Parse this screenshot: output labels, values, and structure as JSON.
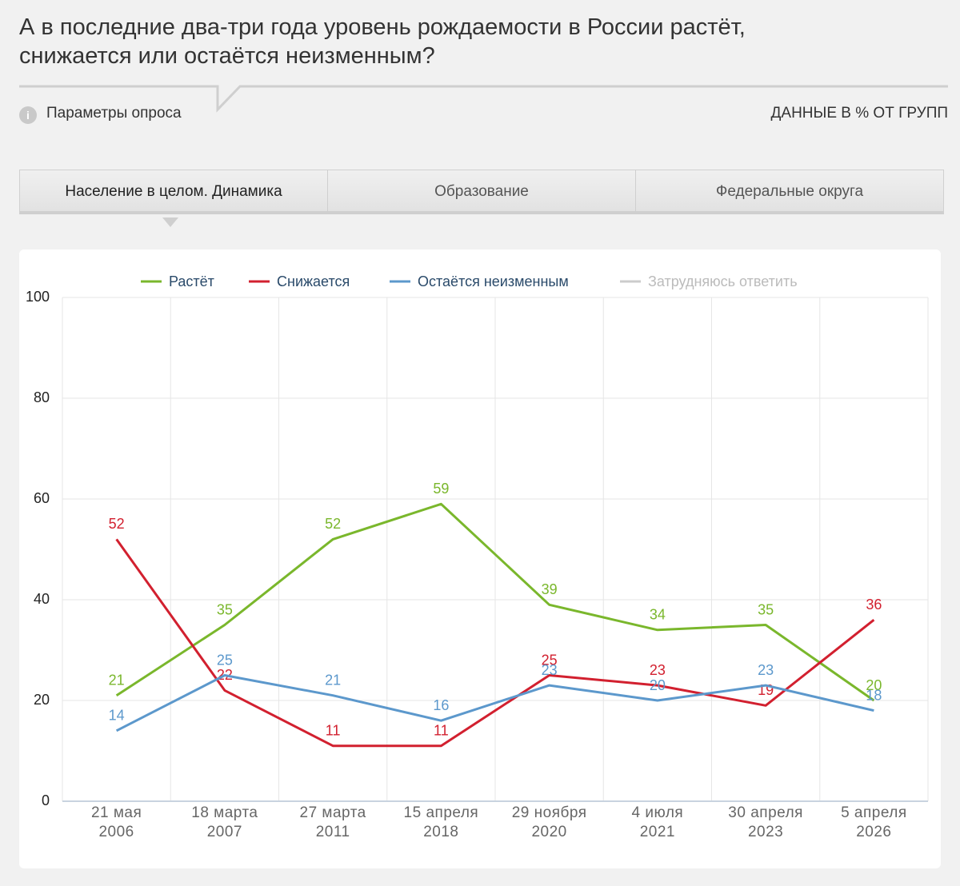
{
  "header": {
    "title": "А в последние два-три года уровень рождаемости в России растёт, снижается или остаётся неизменным?",
    "params": "Параметры опроса",
    "units": "ДАННЫЕ В % ОТ ГРУПП"
  },
  "tabs": [
    "Население в целом. Динамика",
    "Образование",
    "Федеральные округа"
  ],
  "chart_data": {
    "type": "line",
    "categories": [
      "21 мая\n2006",
      "18 марта\n2007",
      "27 марта\n2011",
      "15 апреля\n2018",
      "29 ноября\n2020",
      "4 июля\n2021",
      "30 апреля\n2023",
      "5 апреля\n2026"
    ],
    "series": [
      {
        "name": "Растёт",
        "color": "#7ab72c",
        "values": [
          21,
          35,
          52,
          59,
          39,
          34,
          35,
          20
        ]
      },
      {
        "name": "Снижается",
        "color": "#d2202f",
        "values": [
          52,
          22,
          11,
          11,
          25,
          23,
          19,
          36
        ]
      },
      {
        "name": "Остаётся неизменным",
        "color": "#5c98cc",
        "values": [
          14,
          25,
          21,
          16,
          23,
          20,
          23,
          18
        ]
      },
      {
        "name": "Затрудняюсь ответить",
        "color": "#cccccc",
        "visible": false,
        "values": [
          null,
          null,
          null,
          null,
          null,
          null,
          null,
          null
        ]
      }
    ],
    "ylim": [
      0,
      100
    ],
    "yticks": [
      0,
      20,
      40,
      60,
      80,
      100
    ],
    "grid": true,
    "legend": "top"
  }
}
